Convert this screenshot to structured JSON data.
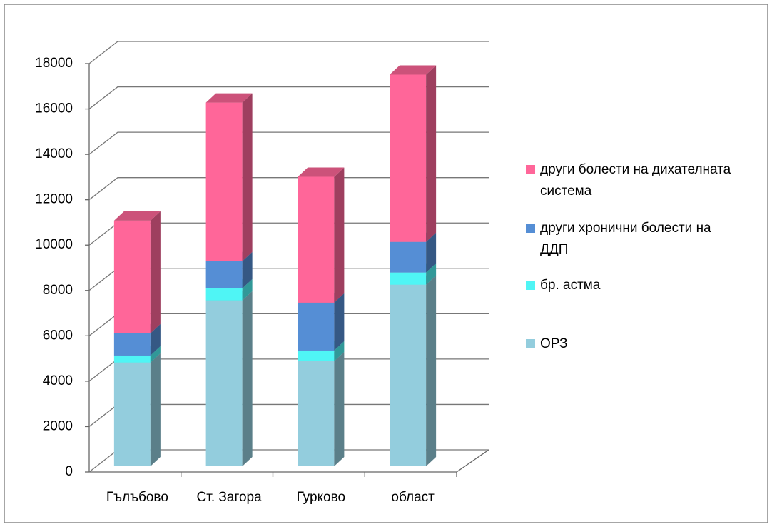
{
  "chart_data": {
    "type": "bar3d-stacked",
    "categories": [
      "Гълъбово",
      "Ст. Загора",
      "Гурково",
      "област"
    ],
    "series": [
      {
        "name": "ОРЗ",
        "color": "#93cddd",
        "values": [
          4570,
          7310,
          4630,
          8000
        ]
      },
      {
        "name": "бр. астма",
        "color": "#4ff5f5",
        "values": [
          310,
          530,
          470,
          540
        ]
      },
      {
        "name": "други хронични болести на ДДП",
        "color": "#558ed5",
        "values": [
          980,
          1200,
          2110,
          1350
        ]
      },
      {
        "name": "други болести на дихателната система",
        "color": "#ff6699",
        "values": [
          4970,
          6990,
          5550,
          7370
        ]
      }
    ],
    "ylim": [
      0,
      18000
    ],
    "yticks": [
      0,
      2000,
      4000,
      6000,
      8000,
      10000,
      12000,
      14000,
      16000,
      18000
    ],
    "grid": true,
    "legend": "right"
  }
}
